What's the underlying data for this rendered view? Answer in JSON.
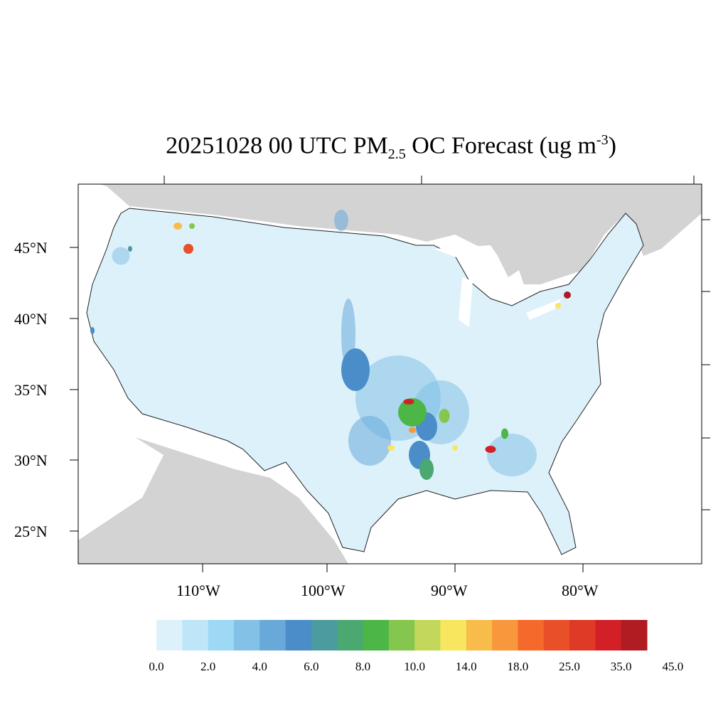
{
  "title": {
    "prefix": "20251028 00 UTC PM",
    "sub": "2.5",
    "middle": " OC Forecast (ug m",
    "sup": "-3",
    "suffix": ")"
  },
  "lat_labels": [
    "45°N",
    "40°N",
    "35°N",
    "30°N",
    "25°N"
  ],
  "lon_labels": [
    "110°W",
    "100°W",
    "90°W",
    "80°W"
  ],
  "colorbar": {
    "colors": [
      "#ddf1fb",
      "#bfe6f8",
      "#9dd9f5",
      "#84c1e6",
      "#68a9da",
      "#4a8dc9",
      "#4a9c9e",
      "#4aa870",
      "#4cb747",
      "#85c64e",
      "#c3d85a",
      "#f8e75e",
      "#f8bc4b",
      "#f8973b",
      "#f56a2b",
      "#e9502a",
      "#df3a26",
      "#d32027",
      "#b01c22"
    ],
    "labels": [
      "0.0",
      "2.0",
      "4.0",
      "6.0",
      "8.0",
      "10.0",
      "14.0",
      "18.0",
      "25.0",
      "35.0",
      "45.0"
    ]
  },
  "colors": {
    "land_other": "#d3d3d3",
    "water": "#ffffff",
    "us_base": "#ddf1fb"
  }
}
